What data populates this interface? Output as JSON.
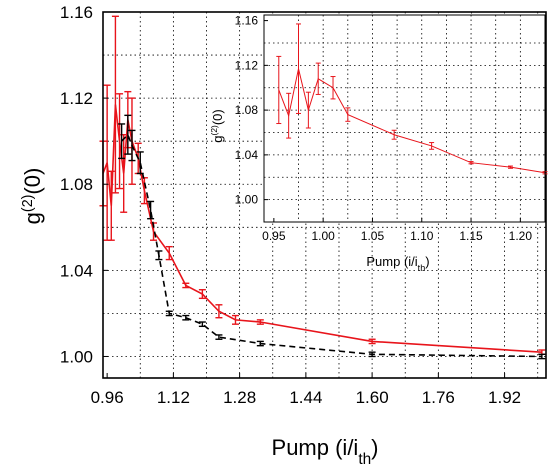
{
  "colors": {
    "red": "#e8141b",
    "black": "#000000",
    "grid": "#000000"
  },
  "chart_data": [
    {
      "id": "main",
      "type": "line",
      "xlabel": "Pump (i/i",
      "xlabel_sub": "th",
      "xlabel_close": ")",
      "ylabel": "g",
      "ylabel_sup": "(2)",
      "ylabel_tail": "(0)",
      "xlim": [
        0.95,
        2.02
      ],
      "ylim": [
        0.99,
        1.16
      ],
      "xticks": [
        0.96,
        1.12,
        1.28,
        1.44,
        1.6,
        1.76,
        1.92
      ],
      "xtick_labels": [
        "0.96",
        "1.12",
        "1.28",
        "1.44",
        "1.60",
        "1.76",
        "1.92"
      ],
      "yticks": [
        1.0,
        1.04,
        1.08,
        1.12,
        1.16
      ],
      "ytick_labels": [
        "1.00",
        "1.04",
        "1.08",
        "1.12",
        "1.16"
      ],
      "grid": true,
      "series": [
        {
          "color": "red",
          "style": "solid",
          "points": [
            {
              "x": 0.95,
              "y": 1.085,
              "err": 0.015
            },
            {
              "x": 0.96,
              "y": 1.09,
              "err": 0.036
            },
            {
              "x": 0.97,
              "y": 1.07,
              "err": 0.016
            },
            {
              "x": 0.98,
              "y": 1.117,
              "err": 0.041
            },
            {
              "x": 0.99,
              "y": 1.1,
              "err": 0.022
            },
            {
              "x": 1.0,
              "y": 1.085,
              "err": 0.018
            },
            {
              "x": 1.01,
              "y": 1.11,
              "err": 0.013
            },
            {
              "x": 1.02,
              "y": 1.1,
              "err": 0.02
            },
            {
              "x": 1.035,
              "y": 1.092,
              "err": 0.007
            },
            {
              "x": 1.05,
              "y": 1.077,
              "err": 0.006
            },
            {
              "x": 1.072,
              "y": 1.058,
              "err": 0.004
            },
            {
              "x": 1.11,
              "y": 1.048,
              "err": 0.003
            },
            {
              "x": 1.15,
              "y": 1.033,
              "err": 0.001
            },
            {
              "x": 1.19,
              "y": 1.029,
              "err": 0.002
            },
            {
              "x": 1.23,
              "y": 1.021,
              "err": 0.003
            },
            {
              "x": 1.27,
              "y": 1.017,
              "err": 0.002
            },
            {
              "x": 1.33,
              "y": 1.016,
              "err": 0.001
            },
            {
              "x": 1.6,
              "y": 1.007,
              "err": 0.001
            },
            {
              "x": 2.01,
              "y": 1.002,
              "err": 0.001
            }
          ]
        },
        {
          "color": "black",
          "style": "dashed",
          "points": [
            {
              "x": 0.995,
              "y": 1.1,
              "err": 0.008
            },
            {
              "x": 1.01,
              "y": 1.103,
              "err": 0.009
            },
            {
              "x": 1.02,
              "y": 1.098,
              "err": 0.007
            },
            {
              "x": 1.04,
              "y": 1.09,
              "err": 0.005
            },
            {
              "x": 1.065,
              "y": 1.068,
              "err": 0.004
            },
            {
              "x": 1.085,
              "y": 1.047,
              "err": 0.002
            },
            {
              "x": 1.11,
              "y": 1.02,
              "err": 0.001
            },
            {
              "x": 1.15,
              "y": 1.018,
              "err": 0.001
            },
            {
              "x": 1.19,
              "y": 1.015,
              "err": 0.001
            },
            {
              "x": 1.23,
              "y": 1.009,
              "err": 0.001
            },
            {
              "x": 1.33,
              "y": 1.006,
              "err": 0.001
            },
            {
              "x": 1.6,
              "y": 1.001,
              "err": 0.001
            },
            {
              "x": 2.01,
              "y": 1.0,
              "err": 0.001
            }
          ]
        }
      ]
    },
    {
      "id": "inset",
      "type": "line",
      "xlabel": "Pump (i/i",
      "xlabel_sub": "th",
      "xlabel_close": ")",
      "ylabel": "g",
      "ylabel_sup": "(2)",
      "ylabel_tail": "(0)",
      "xlim": [
        0.94,
        1.225
      ],
      "ylim": [
        0.98,
        1.165
      ],
      "xticks": [
        0.95,
        1.0,
        1.05,
        1.1,
        1.15,
        1.2
      ],
      "xtick_labels": [
        "0.95",
        "1.00",
        "1.05",
        "1.10",
        "1.15",
        "1.20"
      ],
      "yticks": [
        1.0,
        1.04,
        1.08,
        1.12,
        1.16
      ],
      "ytick_labels": [
        "1.00",
        "1.04",
        "1.08",
        "1.12",
        "1.16"
      ],
      "grid": true,
      "series": [
        {
          "color": "red",
          "style": "solid",
          "points": [
            {
              "x": 0.955,
              "y": 1.098,
              "err": 0.03
            },
            {
              "x": 0.965,
              "y": 1.075,
              "err": 0.02
            },
            {
              "x": 0.975,
              "y": 1.117,
              "err": 0.04
            },
            {
              "x": 0.985,
              "y": 1.08,
              "err": 0.016
            },
            {
              "x": 0.995,
              "y": 1.108,
              "err": 0.014
            },
            {
              "x": 1.01,
              "y": 1.1,
              "err": 0.01
            },
            {
              "x": 1.025,
              "y": 1.076,
              "err": 0.006
            },
            {
              "x": 1.072,
              "y": 1.058,
              "err": 0.004
            },
            {
              "x": 1.11,
              "y": 1.048,
              "err": 0.003
            },
            {
              "x": 1.15,
              "y": 1.033,
              "err": 0.001
            },
            {
              "x": 1.19,
              "y": 1.029,
              "err": 0.001
            },
            {
              "x": 1.225,
              "y": 1.024,
              "err": 0.001
            }
          ]
        }
      ]
    }
  ]
}
